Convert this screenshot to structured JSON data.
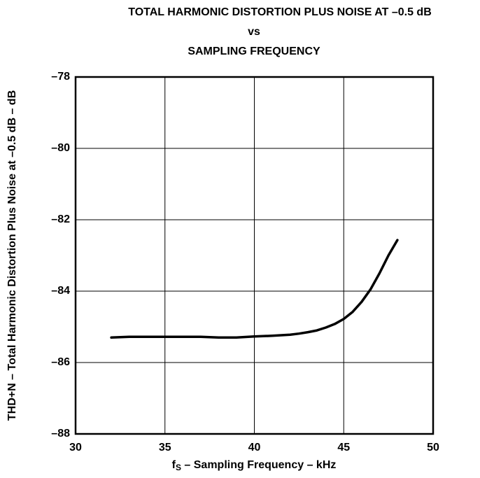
{
  "chart_data": {
    "type": "line",
    "title": [
      "TOTAL HARMONIC DISTORTION PLUS NOISE AT –0.5 dB",
      "vs",
      "SAMPLING FREQUENCY"
    ],
    "x_label": [
      "f",
      "S",
      " – Sampling Frequency – kHz"
    ],
    "y_label": "THD+N – Total Harmonic Distortion Plus Noise at –0.5 dB – dB",
    "x": [
      32,
      33,
      35,
      37,
      38,
      39,
      40,
      41,
      42,
      42.5,
      43,
      43.5,
      44,
      44.5,
      45,
      45.5,
      46,
      46.5,
      47,
      47.5,
      48
    ],
    "values": [
      -85.3,
      -85.28,
      -85.28,
      -85.28,
      -85.3,
      -85.3,
      -85.27,
      -85.25,
      -85.22,
      -85.19,
      -85.15,
      -85.1,
      -85.02,
      -84.92,
      -84.78,
      -84.58,
      -84.3,
      -83.95,
      -83.5,
      -83.0,
      -82.57
    ],
    "color": "#000000",
    "xlim": [
      30,
      50
    ],
    "xticks": [
      30,
      35,
      40,
      45,
      50
    ],
    "ylim": [
      -88,
      -78
    ],
    "yticks": [
      {
        "value": -88,
        "label": "–88"
      },
      {
        "value": -86,
        "label": "–86"
      },
      {
        "value": -84,
        "label": "–84"
      },
      {
        "value": -82,
        "label": "–82"
      },
      {
        "value": -80,
        "label": "–80"
      },
      {
        "value": -78,
        "label": "–78"
      }
    ],
    "grid": true
  }
}
